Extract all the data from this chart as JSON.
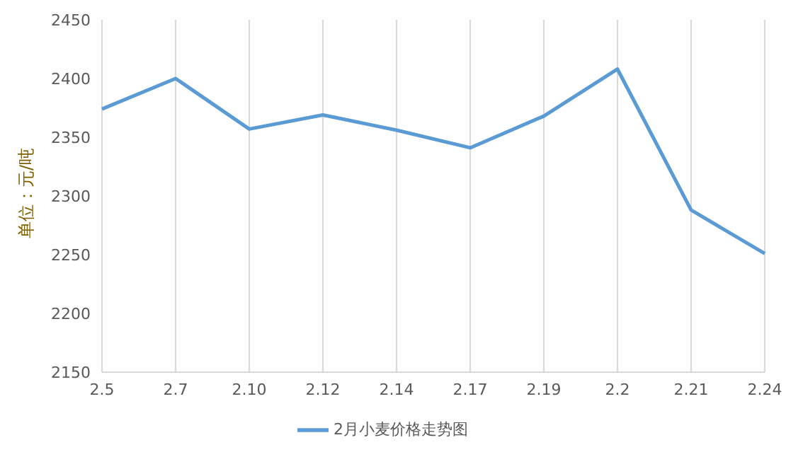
{
  "chart_data": {
    "type": "line",
    "ylabel": "单位：元/吨",
    "categories": [
      "2.5",
      "2.7",
      "2.10",
      "2.12",
      "2.14",
      "2.17",
      "2.19",
      "2.2",
      "2.21",
      "2.24"
    ],
    "series": [
      {
        "name": "2月小麦价格走势图",
        "color": "#5b9bd5",
        "values": [
          2374,
          2400,
          2357,
          2369,
          2356,
          2341,
          2368,
          2408,
          2288,
          2251
        ]
      }
    ],
    "ylim": [
      2150,
      2450
    ],
    "yticks": [
      2150,
      2200,
      2250,
      2300,
      2350,
      2400,
      2450
    ],
    "grid": "x",
    "legend": "bottom",
    "marker": "none",
    "line_style": "solid"
  }
}
